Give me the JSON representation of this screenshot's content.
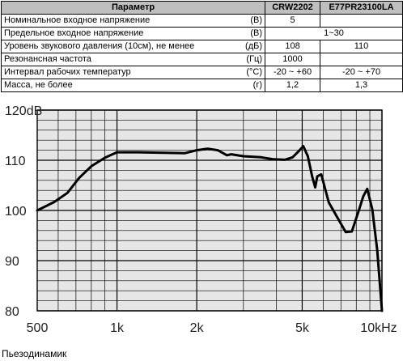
{
  "table": {
    "headers": [
      "Параметр",
      "CRW2202",
      "E77PR23100LA"
    ],
    "rows": [
      {
        "param": "Номинальное входное напряжение",
        "unit": "(В)",
        "crw": "5",
        "e77": ""
      },
      {
        "param": "Предельное входное напряжение",
        "unit": "(В)",
        "merged": "1~30"
      },
      {
        "param": "Уровень звукового давления (10см), не менее",
        "unit": "(дБ)",
        "crw": "108",
        "e77": "110"
      },
      {
        "param": "Резонансная частота",
        "unit": "(Гц)",
        "crw": "1000",
        "e77": ""
      },
      {
        "param": "Интервал рабочих температур",
        "unit": "(°С)",
        "crw": "-20 ~ +60",
        "e77": "-20 ~ +70"
      },
      {
        "param": "Масса, не более",
        "unit": "(г)",
        "crw": "1,2",
        "e77": "1,3"
      }
    ]
  },
  "chart_data": {
    "type": "line",
    "x_scale": "log",
    "xlim": [
      500,
      10000
    ],
    "ylim": [
      80,
      120
    ],
    "x_ticks": [
      {
        "value": 500,
        "label": "500"
      },
      {
        "value": 1000,
        "label": "1k"
      },
      {
        "value": 2000,
        "label": "2k"
      },
      {
        "value": 5000,
        "label": "5k"
      },
      {
        "value": 10000,
        "label": "10kHz"
      }
    ],
    "y_ticks": [
      {
        "value": 120,
        "label": "120dB"
      },
      {
        "value": 110,
        "label": "110"
      },
      {
        "value": 100,
        "label": "100"
      },
      {
        "value": 90,
        "label": "90"
      },
      {
        "value": 80,
        "label": "80"
      }
    ],
    "grid": true,
    "colors": {
      "background": "#e6e6e6",
      "grid": "#000000",
      "line": "#000000"
    },
    "series": [
      {
        "x": [
          500,
          580,
          650,
          720,
          800,
          900,
          1000,
          1200,
          1500,
          1800,
          2000,
          2200,
          2400,
          2600,
          2700,
          3000,
          3500,
          3900,
          4300,
          4600,
          4850,
          5050,
          5250,
          5450,
          5600,
          5700,
          5900,
          6300,
          6800,
          7300,
          7700,
          8200,
          8500,
          8800,
          9200,
          9600,
          10000
        ],
        "y": [
          100,
          101.7,
          103.5,
          106.5,
          108.8,
          110.5,
          111.6,
          111.6,
          111.5,
          111.4,
          112,
          112.3,
          112,
          111,
          111.2,
          110.8,
          110.6,
          110.2,
          110.1,
          110.6,
          111.8,
          112.8,
          110.8,
          106.8,
          104.6,
          106.8,
          107.2,
          101.6,
          98.5,
          95.7,
          95.8,
          100.2,
          102.8,
          104.3,
          100.2,
          92,
          80
        ]
      }
    ]
  },
  "caption": "Пьезодинамик"
}
